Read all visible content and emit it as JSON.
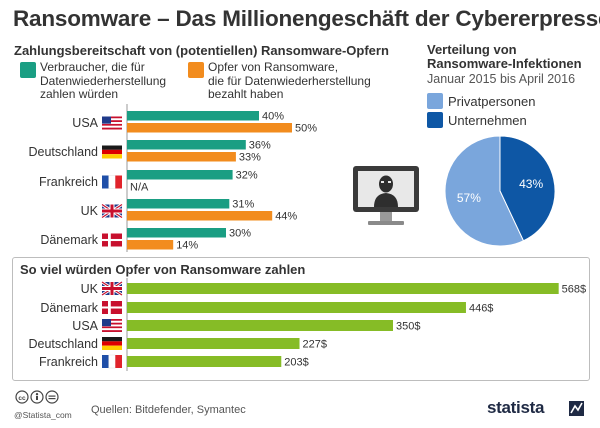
{
  "title": "Ransomware – Das Millionengeschäft der Cybererpresser",
  "chart_data": [
    {
      "type": "bar",
      "orientation": "horizontal",
      "subtitle": "Zahlungsbereitschaft von (potentiellen) Ransomware-Opfern",
      "categories": [
        "USA",
        "Deutschland",
        "Frankreich",
        "UK",
        "Dänemark"
      ],
      "series": [
        {
          "name": "Verbraucher, die für Datenwiederherstellung zahlen würden",
          "name_lines": [
            "Verbraucher, die für",
            "Datenwiederherstellung",
            "zahlen würden"
          ],
          "color": "#1a9e83",
          "values": [
            40,
            36,
            32,
            31,
            30
          ],
          "labels": [
            "40%",
            "36%",
            "32%",
            "31%",
            "30%"
          ]
        },
        {
          "name": "Opfer von Ransomware, die für Datenwiederherstellung bezahlt haben",
          "name_lines": [
            "Opfer von Ransomware,",
            "die für Datenwiederherstellung",
            "bezahlt haben"
          ],
          "color": "#f28c1e",
          "values": [
            50,
            33,
            null,
            44,
            14
          ],
          "labels": [
            "50%",
            "33%",
            "N/A",
            "44%",
            "14%"
          ]
        }
      ],
      "unit": "%",
      "legend_position": "top"
    },
    {
      "type": "pie",
      "title_lines": [
        "Verteilung von",
        "Ransomware-Infektionen"
      ],
      "subtitle": "Januar 2015 bis April 2016",
      "slices": [
        {
          "name": "Privatpersonen",
          "value": 57,
          "label": "57%",
          "color": "#7aa6dc"
        },
        {
          "name": "Unternehmen",
          "value": 43,
          "label": "43%",
          "color": "#0e57a5"
        }
      ],
      "legend_position": "top"
    },
    {
      "type": "bar",
      "orientation": "horizontal",
      "subtitle": "So viel würden Opfer von Ransomware zahlen",
      "categories": [
        "UK",
        "Dänemark",
        "USA",
        "Deutschland",
        "Frankreich"
      ],
      "values": [
        568,
        446,
        350,
        227,
        203
      ],
      "labels": [
        "568$",
        "446$",
        "350$",
        "227$",
        "203$"
      ],
      "unit": "$",
      "color": "#86bc26"
    }
  ],
  "flags": {
    "USA": "flag-usa-icon",
    "Deutschland": "flag-germany-icon",
    "Frankreich": "flag-france-icon",
    "UK": "flag-uk-icon",
    "Dänemark": "flag-denmark-icon"
  },
  "illustration": "hacker-monitor-icon",
  "footer": {
    "handle": "@Statista_com",
    "source": "Quellen: Bitdefender, Symantec",
    "brand": "statista"
  }
}
